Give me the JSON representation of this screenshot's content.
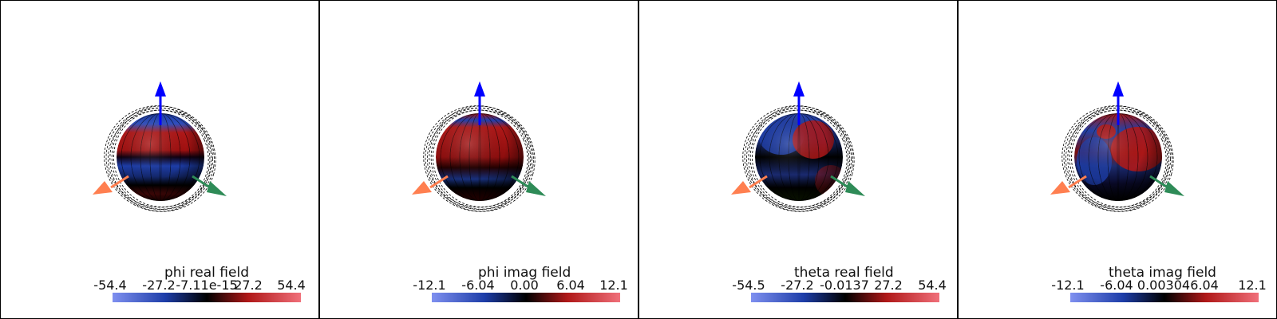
{
  "panels": [
    {
      "title": "phi real field",
      "ticks": [
        "-54.4",
        "-27.2",
        "-7.11e-15",
        "27.2",
        "54.4"
      ],
      "pattern": "phi_real"
    },
    {
      "title": "phi imag field",
      "ticks": [
        "-12.1",
        "-6.04",
        "0.00",
        "6.04",
        "12.1"
      ],
      "pattern": "phi_imag"
    },
    {
      "title": "theta real field",
      "ticks": [
        "-54.5",
        "-27.2",
        "-0.0137",
        "27.2",
        "54.4"
      ],
      "pattern": "theta_real"
    },
    {
      "title": "theta imag field",
      "ticks": [
        "-12.1",
        "-6.04",
        "0.00304",
        "6.04",
        "12.1"
      ],
      "pattern": "theta_imag"
    }
  ],
  "colors": {
    "colormap_low": "#7f90f0",
    "colormap_blue": "#1d3da8",
    "colormap_mid": "#000000",
    "colormap_red": "#b01818",
    "colormap_high": "#f0707a",
    "axis_z": "#0000ff",
    "axis_x": "#ff7f50",
    "axis_y": "#2e8b57"
  },
  "icons": [
    "orientation-axes-z-arrow",
    "orientation-axes-x-arrow",
    "orientation-axes-y-arrow"
  ]
}
